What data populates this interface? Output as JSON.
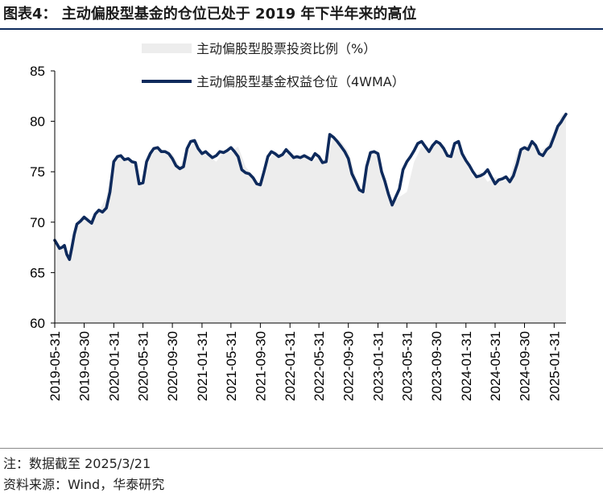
{
  "title": "图表4：  主动偏股型基金的仓位已处于 2019 年下半年来的高位",
  "note": "注：数据截至 2025/3/21",
  "source": "资料来源：Wind，华泰研究",
  "colors": {
    "line": "#0e2a5c",
    "area": "#ededed",
    "rule": "#0e2a5c"
  },
  "chart_data": {
    "type": "line",
    "ylim": [
      60,
      85
    ],
    "yticks": [
      60,
      65,
      70,
      75,
      80,
      85
    ],
    "xticks": [
      "2019-05-31",
      "2019-09-30",
      "2020-01-31",
      "2020-05-31",
      "2020-09-30",
      "2021-01-31",
      "2021-05-31",
      "2021-09-30",
      "2022-01-31",
      "2022-05-31",
      "2022-09-30",
      "2023-01-31",
      "2023-05-31",
      "2023-09-30",
      "2024-01-31",
      "2024-05-31",
      "2024-09-30",
      "2025-01-31"
    ],
    "xrange": [
      "2019-05-31",
      "2025-03-21"
    ],
    "legend": {
      "position": "top",
      "entries": [
        "主动偏股型股票投资比例（%）",
        "主动偏股型基金权益仓位（4WMA）"
      ]
    },
    "series": [
      {
        "name": "主动偏股型股票投资比例（%）",
        "kind": "area",
        "points": [
          [
            "2019-05-31",
            67.8
          ],
          [
            "2019-06-30",
            67.5
          ],
          [
            "2019-07-31",
            66.3
          ],
          [
            "2019-08-31",
            69.5
          ],
          [
            "2019-09-30",
            70.5
          ],
          [
            "2019-10-31",
            70.0
          ],
          [
            "2019-11-30",
            71.0
          ],
          [
            "2019-12-31",
            72.5
          ],
          [
            "2020-01-31",
            76.0
          ],
          [
            "2020-02-29",
            76.5
          ],
          [
            "2020-03-31",
            76.2
          ],
          [
            "2020-04-30",
            75.8
          ],
          [
            "2020-05-31",
            73.5
          ],
          [
            "2020-06-30",
            76.5
          ],
          [
            "2020-07-31",
            77.5
          ],
          [
            "2020-08-31",
            77.0
          ],
          [
            "2020-09-30",
            76.8
          ],
          [
            "2020-10-31",
            75.5
          ],
          [
            "2020-11-30",
            77.0
          ],
          [
            "2020-12-31",
            78.0
          ],
          [
            "2021-01-31",
            77.0
          ],
          [
            "2021-02-28",
            76.5
          ],
          [
            "2021-03-31",
            76.0
          ],
          [
            "2021-04-30",
            77.0
          ],
          [
            "2021-05-31",
            77.0
          ],
          [
            "2021-06-30",
            77.5
          ],
          [
            "2021-07-31",
            75.5
          ],
          [
            "2021-08-31",
            74.5
          ],
          [
            "2021-09-30",
            73.5
          ],
          [
            "2021-10-31",
            76.0
          ],
          [
            "2021-11-30",
            77.0
          ],
          [
            "2021-12-31",
            76.5
          ],
          [
            "2022-01-31",
            77.0
          ],
          [
            "2022-02-28",
            76.5
          ],
          [
            "2022-03-31",
            76.5
          ],
          [
            "2022-04-30",
            76.0
          ],
          [
            "2022-05-31",
            76.5
          ],
          [
            "2022-06-30",
            76.0
          ],
          [
            "2022-07-31",
            78.5
          ],
          [
            "2022-08-31",
            78.0
          ],
          [
            "2022-09-30",
            77.0
          ],
          [
            "2022-10-31",
            74.5
          ],
          [
            "2022-11-30",
            73.0
          ],
          [
            "2022-12-31",
            76.5
          ],
          [
            "2023-01-31",
            77.0
          ],
          [
            "2023-02-28",
            74.0
          ],
          [
            "2023-03-31",
            72.0
          ],
          [
            "2023-04-30",
            72.5
          ],
          [
            "2023-05-31",
            73.0
          ],
          [
            "2023-06-30",
            76.0
          ],
          [
            "2023-07-31",
            77.5
          ],
          [
            "2023-08-31",
            77.0
          ],
          [
            "2023-09-30",
            78.0
          ],
          [
            "2023-10-31",
            77.5
          ],
          [
            "2023-11-30",
            76.5
          ],
          [
            "2023-12-31",
            77.5
          ],
          [
            "2024-01-31",
            76.0
          ],
          [
            "2024-02-29",
            74.5
          ],
          [
            "2024-03-31",
            75.0
          ],
          [
            "2024-04-30",
            74.0
          ],
          [
            "2024-05-31",
            74.5
          ],
          [
            "2024-06-30",
            74.0
          ],
          [
            "2024-07-31",
            74.5
          ],
          [
            "2024-08-31",
            77.0
          ],
          [
            "2024-09-30",
            77.5
          ],
          [
            "2024-10-31",
            78.0
          ],
          [
            "2024-11-30",
            77.0
          ],
          [
            "2024-12-31",
            77.5
          ],
          [
            "2025-01-31",
            79.0
          ],
          [
            "2025-02-28",
            80.5
          ],
          [
            "2025-03-21",
            81.0
          ]
        ]
      },
      {
        "name": "主动偏股型基金权益仓位（4WMA）",
        "kind": "line",
        "points": [
          [
            "2019-05-31",
            68.2
          ],
          [
            "2019-06-10",
            67.8
          ],
          [
            "2019-06-20",
            67.4
          ],
          [
            "2019-06-30",
            67.5
          ],
          [
            "2019-07-10",
            67.7
          ],
          [
            "2019-07-20",
            66.8
          ],
          [
            "2019-07-31",
            66.3
          ],
          [
            "2019-08-10",
            67.5
          ],
          [
            "2019-08-20",
            68.8
          ],
          [
            "2019-08-31",
            69.8
          ],
          [
            "2019-09-15",
            70.1
          ],
          [
            "2019-09-30",
            70.5
          ],
          [
            "2019-10-15",
            70.2
          ],
          [
            "2019-10-31",
            69.9
          ],
          [
            "2019-11-15",
            70.8
          ],
          [
            "2019-11-30",
            71.2
          ],
          [
            "2019-12-15",
            71.0
          ],
          [
            "2019-12-31",
            71.4
          ],
          [
            "2020-01-15",
            73.0
          ],
          [
            "2020-01-31",
            76.0
          ],
          [
            "2020-02-15",
            76.5
          ],
          [
            "2020-02-29",
            76.6
          ],
          [
            "2020-03-15",
            76.2
          ],
          [
            "2020-03-31",
            76.3
          ],
          [
            "2020-04-15",
            76.0
          ],
          [
            "2020-04-30",
            75.9
          ],
          [
            "2020-05-15",
            73.8
          ],
          [
            "2020-05-31",
            73.9
          ],
          [
            "2020-06-15",
            76.0
          ],
          [
            "2020-06-30",
            76.8
          ],
          [
            "2020-07-15",
            77.3
          ],
          [
            "2020-07-31",
            77.4
          ],
          [
            "2020-08-15",
            77.0
          ],
          [
            "2020-08-31",
            77.0
          ],
          [
            "2020-09-15",
            76.8
          ],
          [
            "2020-09-30",
            76.3
          ],
          [
            "2020-10-15",
            75.6
          ],
          [
            "2020-10-31",
            75.3
          ],
          [
            "2020-11-15",
            75.5
          ],
          [
            "2020-11-30",
            77.3
          ],
          [
            "2020-12-15",
            78.0
          ],
          [
            "2020-12-31",
            78.1
          ],
          [
            "2021-01-15",
            77.3
          ],
          [
            "2021-01-31",
            76.8
          ],
          [
            "2021-02-15",
            77.0
          ],
          [
            "2021-02-28",
            76.7
          ],
          [
            "2021-03-15",
            76.4
          ],
          [
            "2021-03-31",
            76.6
          ],
          [
            "2021-04-15",
            77.0
          ],
          [
            "2021-04-30",
            76.9
          ],
          [
            "2021-05-15",
            77.1
          ],
          [
            "2021-05-31",
            77.4
          ],
          [
            "2021-06-15",
            77.0
          ],
          [
            "2021-06-30",
            76.5
          ],
          [
            "2021-07-15",
            75.2
          ],
          [
            "2021-07-31",
            74.9
          ],
          [
            "2021-08-15",
            74.8
          ],
          [
            "2021-08-31",
            74.4
          ],
          [
            "2021-09-15",
            73.8
          ],
          [
            "2021-09-30",
            73.7
          ],
          [
            "2021-10-15",
            75.0
          ],
          [
            "2021-10-31",
            76.5
          ],
          [
            "2021-11-15",
            77.0
          ],
          [
            "2021-11-30",
            76.8
          ],
          [
            "2021-12-15",
            76.5
          ],
          [
            "2021-12-31",
            76.7
          ],
          [
            "2022-01-15",
            77.2
          ],
          [
            "2022-01-31",
            76.8
          ],
          [
            "2022-02-15",
            76.4
          ],
          [
            "2022-02-28",
            76.5
          ],
          [
            "2022-03-15",
            76.4
          ],
          [
            "2022-03-31",
            76.6
          ],
          [
            "2022-04-15",
            76.4
          ],
          [
            "2022-04-30",
            76.2
          ],
          [
            "2022-05-15",
            76.8
          ],
          [
            "2022-05-31",
            76.5
          ],
          [
            "2022-06-15",
            75.9
          ],
          [
            "2022-06-30",
            76.0
          ],
          [
            "2022-07-15",
            78.7
          ],
          [
            "2022-07-31",
            78.4
          ],
          [
            "2022-08-15",
            78.0
          ],
          [
            "2022-08-31",
            77.5
          ],
          [
            "2022-09-15",
            77.0
          ],
          [
            "2022-09-30",
            76.3
          ],
          [
            "2022-10-15",
            74.8
          ],
          [
            "2022-10-31",
            74.0
          ],
          [
            "2022-11-15",
            73.2
          ],
          [
            "2022-11-30",
            73.0
          ],
          [
            "2022-12-15",
            75.5
          ],
          [
            "2022-12-31",
            76.9
          ],
          [
            "2023-01-15",
            77.0
          ],
          [
            "2023-01-31",
            76.8
          ],
          [
            "2023-02-15",
            75.0
          ],
          [
            "2023-02-28",
            74.1
          ],
          [
            "2023-03-15",
            72.8
          ],
          [
            "2023-03-31",
            71.7
          ],
          [
            "2023-04-15",
            72.5
          ],
          [
            "2023-04-30",
            73.3
          ],
          [
            "2023-05-15",
            75.2
          ],
          [
            "2023-05-31",
            76.0
          ],
          [
            "2023-06-15",
            76.5
          ],
          [
            "2023-06-30",
            77.1
          ],
          [
            "2023-07-15",
            77.8
          ],
          [
            "2023-07-31",
            78.0
          ],
          [
            "2023-08-15",
            77.5
          ],
          [
            "2023-08-31",
            77.0
          ],
          [
            "2023-09-15",
            77.6
          ],
          [
            "2023-09-30",
            78.0
          ],
          [
            "2023-10-15",
            77.8
          ],
          [
            "2023-10-31",
            77.3
          ],
          [
            "2023-11-15",
            76.6
          ],
          [
            "2023-11-30",
            76.5
          ],
          [
            "2023-12-15",
            77.8
          ],
          [
            "2023-12-31",
            78.0
          ],
          [
            "2024-01-15",
            76.8
          ],
          [
            "2024-01-31",
            76.1
          ],
          [
            "2024-02-15",
            75.6
          ],
          [
            "2024-02-29",
            75.0
          ],
          [
            "2024-03-15",
            74.5
          ],
          [
            "2024-03-31",
            74.6
          ],
          [
            "2024-04-15",
            74.8
          ],
          [
            "2024-04-30",
            75.2
          ],
          [
            "2024-05-15",
            74.5
          ],
          [
            "2024-05-31",
            73.8
          ],
          [
            "2024-06-15",
            74.2
          ],
          [
            "2024-06-30",
            74.3
          ],
          [
            "2024-07-15",
            74.5
          ],
          [
            "2024-07-31",
            74.0
          ],
          [
            "2024-08-15",
            74.6
          ],
          [
            "2024-08-31",
            75.8
          ],
          [
            "2024-09-15",
            77.2
          ],
          [
            "2024-09-30",
            77.4
          ],
          [
            "2024-10-15",
            77.2
          ],
          [
            "2024-10-31",
            78.0
          ],
          [
            "2024-11-15",
            77.6
          ],
          [
            "2024-11-30",
            76.8
          ],
          [
            "2024-12-15",
            76.6
          ],
          [
            "2024-12-31",
            77.2
          ],
          [
            "2025-01-15",
            77.5
          ],
          [
            "2025-01-31",
            78.5
          ],
          [
            "2025-02-15",
            79.5
          ],
          [
            "2025-02-28",
            79.9
          ],
          [
            "2025-03-10",
            80.3
          ],
          [
            "2025-03-21",
            80.7
          ]
        ]
      }
    ]
  }
}
